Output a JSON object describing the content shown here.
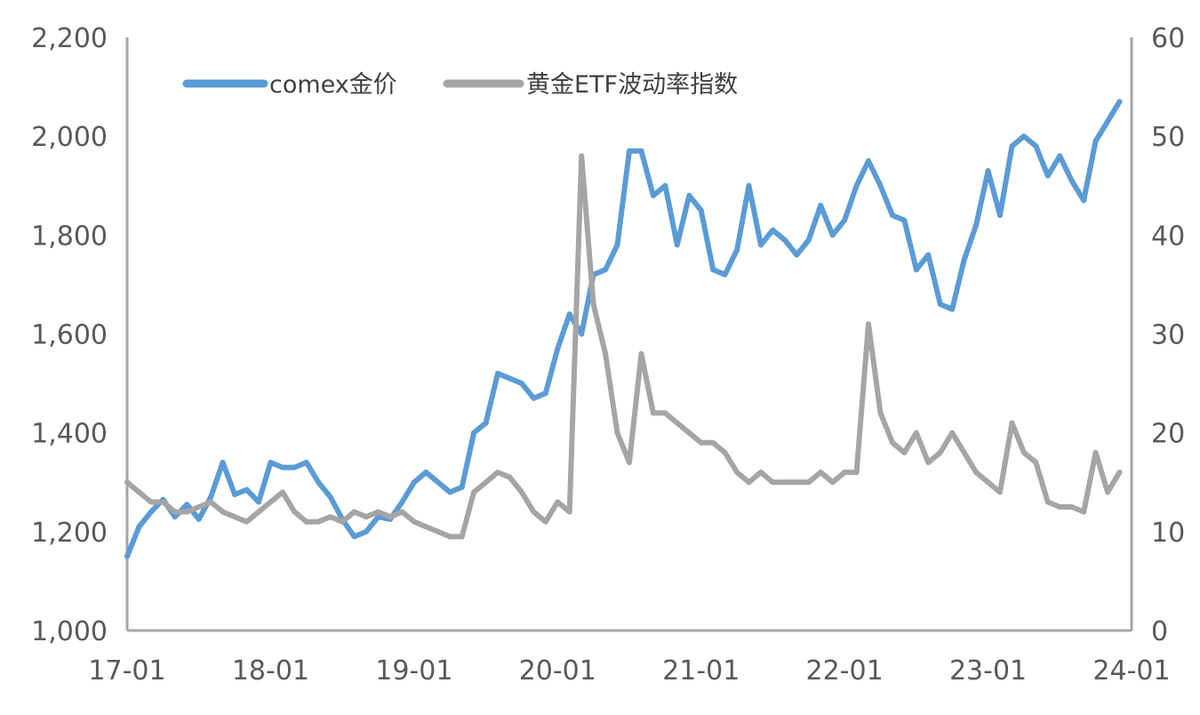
{
  "chart_data": {
    "type": "line",
    "x_ticks": [
      "17-01",
      "18-01",
      "19-01",
      "20-01",
      "21-01",
      "22-01",
      "23-01",
      "24-01"
    ],
    "left_axis": {
      "ylim": [
        1000,
        2200
      ],
      "ticks": [
        1000,
        1200,
        1400,
        1600,
        1800,
        2000,
        2200
      ],
      "tick_labels": [
        "1,000",
        "1,200",
        "1,400",
        "1,600",
        "1,800",
        "2,000",
        "2,200"
      ]
    },
    "right_axis": {
      "ylim": [
        0,
        60
      ],
      "ticks": [
        0,
        10,
        20,
        30,
        40,
        50,
        60
      ],
      "tick_labels": [
        "0",
        "10",
        "20",
        "30",
        "40",
        "50",
        "60"
      ]
    },
    "legend_position": "top-left",
    "grid": false,
    "series": [
      {
        "name": "comex金价",
        "axis": "left",
        "color": "#5B9BD5",
        "points": [
          [
            "2017-01",
            1150
          ],
          [
            "2017-02",
            1210
          ],
          [
            "2017-03",
            1240
          ],
          [
            "2017-04",
            1265
          ],
          [
            "2017-05",
            1230
          ],
          [
            "2017-06",
            1255
          ],
          [
            "2017-07",
            1225
          ],
          [
            "2017-08",
            1270
          ],
          [
            "2017-09",
            1340
          ],
          [
            "2017-10",
            1275
          ],
          [
            "2017-11",
            1285
          ],
          [
            "2017-12",
            1260
          ],
          [
            "2018-01",
            1340
          ],
          [
            "2018-02",
            1330
          ],
          [
            "2018-03",
            1330
          ],
          [
            "2018-04",
            1340
          ],
          [
            "2018-05",
            1300
          ],
          [
            "2018-06",
            1270
          ],
          [
            "2018-07",
            1225
          ],
          [
            "2018-08",
            1190
          ],
          [
            "2018-09",
            1200
          ],
          [
            "2018-10",
            1230
          ],
          [
            "2018-11",
            1225
          ],
          [
            "2018-12",
            1260
          ],
          [
            "2019-01",
            1300
          ],
          [
            "2019-02",
            1320
          ],
          [
            "2019-03",
            1300
          ],
          [
            "2019-04",
            1280
          ],
          [
            "2019-05",
            1290
          ],
          [
            "2019-06",
            1400
          ],
          [
            "2019-07",
            1420
          ],
          [
            "2019-08",
            1520
          ],
          [
            "2019-09",
            1510
          ],
          [
            "2019-10",
            1500
          ],
          [
            "2019-11",
            1470
          ],
          [
            "2019-12",
            1480
          ],
          [
            "2020-01",
            1570
          ],
          [
            "2020-02",
            1640
          ],
          [
            "2020-03",
            1600
          ],
          [
            "2020-04",
            1720
          ],
          [
            "2020-05",
            1730
          ],
          [
            "2020-06",
            1780
          ],
          [
            "2020-07",
            1970
          ],
          [
            "2020-08",
            1970
          ],
          [
            "2020-09",
            1880
          ],
          [
            "2020-10",
            1900
          ],
          [
            "2020-11",
            1780
          ],
          [
            "2020-12",
            1880
          ],
          [
            "2021-01",
            1850
          ],
          [
            "2021-02",
            1730
          ],
          [
            "2021-03",
            1720
          ],
          [
            "2021-04",
            1770
          ],
          [
            "2021-05",
            1900
          ],
          [
            "2021-06",
            1780
          ],
          [
            "2021-07",
            1810
          ],
          [
            "2021-08",
            1790
          ],
          [
            "2021-09",
            1760
          ],
          [
            "2021-10",
            1790
          ],
          [
            "2021-11",
            1860
          ],
          [
            "2021-12",
            1800
          ],
          [
            "2022-01",
            1830
          ],
          [
            "2022-02",
            1900
          ],
          [
            "2022-03",
            1950
          ],
          [
            "2022-04",
            1900
          ],
          [
            "2022-05",
            1840
          ],
          [
            "2022-06",
            1830
          ],
          [
            "2022-07",
            1730
          ],
          [
            "2022-08",
            1760
          ],
          [
            "2022-09",
            1660
          ],
          [
            "2022-10",
            1650
          ],
          [
            "2022-11",
            1750
          ],
          [
            "2022-12",
            1820
          ],
          [
            "2023-01",
            1930
          ],
          [
            "2023-02",
            1840
          ],
          [
            "2023-03",
            1980
          ],
          [
            "2023-04",
            2000
          ],
          [
            "2023-05",
            1980
          ],
          [
            "2023-06",
            1920
          ],
          [
            "2023-07",
            1960
          ],
          [
            "2023-08",
            1910
          ],
          [
            "2023-09",
            1870
          ],
          [
            "2023-10",
            1990
          ],
          [
            "2023-11",
            2030
          ],
          [
            "2023-12",
            2070
          ]
        ]
      },
      {
        "name": "黄金ETF波动率指数",
        "axis": "right",
        "color": "#A5A5A5",
        "points": [
          [
            "2017-01",
            15
          ],
          [
            "2017-02",
            14
          ],
          [
            "2017-03",
            13
          ],
          [
            "2017-04",
            13
          ],
          [
            "2017-05",
            12
          ],
          [
            "2017-06",
            12
          ],
          [
            "2017-07",
            12.5
          ],
          [
            "2017-08",
            13
          ],
          [
            "2017-09",
            12
          ],
          [
            "2017-10",
            11.5
          ],
          [
            "2017-11",
            11
          ],
          [
            "2017-12",
            12
          ],
          [
            "2018-01",
            13
          ],
          [
            "2018-02",
            14
          ],
          [
            "2018-03",
            12
          ],
          [
            "2018-04",
            11
          ],
          [
            "2018-05",
            11
          ],
          [
            "2018-06",
            11.5
          ],
          [
            "2018-07",
            11
          ],
          [
            "2018-08",
            12
          ],
          [
            "2018-09",
            11.5
          ],
          [
            "2018-10",
            12
          ],
          [
            "2018-11",
            11.5
          ],
          [
            "2018-12",
            12
          ],
          [
            "2019-01",
            11
          ],
          [
            "2019-02",
            10.5
          ],
          [
            "2019-03",
            10
          ],
          [
            "2019-04",
            9.5
          ],
          [
            "2019-05",
            9.5
          ],
          [
            "2019-06",
            14
          ],
          [
            "2019-07",
            15
          ],
          [
            "2019-08",
            16
          ],
          [
            "2019-09",
            15.5
          ],
          [
            "2019-10",
            14
          ],
          [
            "2019-11",
            12
          ],
          [
            "2019-12",
            11
          ],
          [
            "2020-01",
            13
          ],
          [
            "2020-02",
            12
          ],
          [
            "2020-03",
            48
          ],
          [
            "2020-04",
            33
          ],
          [
            "2020-05",
            28
          ],
          [
            "2020-06",
            20
          ],
          [
            "2020-07",
            17
          ],
          [
            "2020-08",
            28
          ],
          [
            "2020-09",
            22
          ],
          [
            "2020-10",
            22
          ],
          [
            "2020-11",
            21
          ],
          [
            "2020-12",
            20
          ],
          [
            "2021-01",
            19
          ],
          [
            "2021-02",
            19
          ],
          [
            "2021-03",
            18
          ],
          [
            "2021-04",
            16
          ],
          [
            "2021-05",
            15
          ],
          [
            "2021-06",
            16
          ],
          [
            "2021-07",
            15
          ],
          [
            "2021-08",
            15
          ],
          [
            "2021-09",
            15
          ],
          [
            "2021-10",
            15
          ],
          [
            "2021-11",
            16
          ],
          [
            "2021-12",
            15
          ],
          [
            "2022-01",
            16
          ],
          [
            "2022-02",
            16
          ],
          [
            "2022-03",
            31
          ],
          [
            "2022-04",
            22
          ],
          [
            "2022-05",
            19
          ],
          [
            "2022-06",
            18
          ],
          [
            "2022-07",
            20
          ],
          [
            "2022-08",
            17
          ],
          [
            "2022-09",
            18
          ],
          [
            "2022-10",
            20
          ],
          [
            "2022-11",
            18
          ],
          [
            "2022-12",
            16
          ],
          [
            "2023-01",
            15
          ],
          [
            "2023-02",
            14
          ],
          [
            "2023-03",
            21
          ],
          [
            "2023-04",
            18
          ],
          [
            "2023-05",
            17
          ],
          [
            "2023-06",
            13
          ],
          [
            "2023-07",
            12.5
          ],
          [
            "2023-08",
            12.5
          ],
          [
            "2023-09",
            12
          ],
          [
            "2023-10",
            18
          ],
          [
            "2023-11",
            14
          ],
          [
            "2023-12",
            16
          ]
        ]
      }
    ]
  }
}
